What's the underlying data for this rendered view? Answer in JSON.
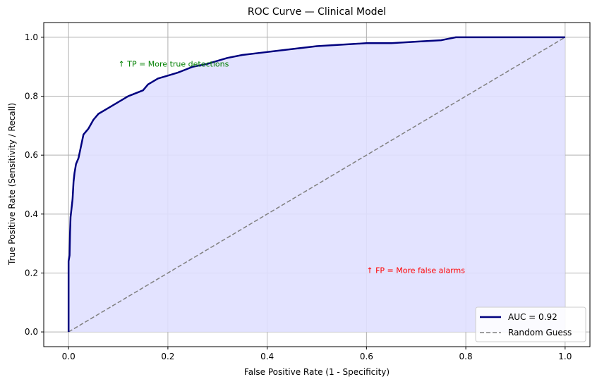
{
  "chart_data": {
    "type": "line",
    "title": "ROC Curve — Clinical Model",
    "xlabel": "False Positive Rate (1 - Specificity)",
    "ylabel": "True Positive Rate (Sensitivity / Recall)",
    "xlim": [
      -0.05,
      1.05
    ],
    "ylim": [
      -0.05,
      1.05
    ],
    "xticks": [
      "0.0",
      "0.2",
      "0.4",
      "0.6",
      "0.8",
      "1.0"
    ],
    "yticks": [
      "0.0",
      "0.2",
      "0.4",
      "0.6",
      "0.8",
      "1.0"
    ],
    "grid": true,
    "legend_position": "lower-right",
    "series": [
      {
        "name": "AUC = 0.92",
        "color": "#00007f",
        "style": "solid",
        "fill": "#e0e0ff",
        "x": [
          0,
          0,
          0.002,
          0.003,
          0.004,
          0.006,
          0.008,
          0.01,
          0.012,
          0.015,
          0.02,
          0.025,
          0.03,
          0.04,
          0.05,
          0.06,
          0.08,
          0.1,
          0.12,
          0.15,
          0.16,
          0.18,
          0.2,
          0.22,
          0.25,
          0.28,
          0.3,
          0.32,
          0.35,
          0.4,
          0.45,
          0.5,
          0.55,
          0.6,
          0.65,
          0.7,
          0.75,
          0.78,
          0.8,
          0.85,
          0.9,
          1.0
        ],
        "y": [
          0,
          0.24,
          0.26,
          0.34,
          0.39,
          0.42,
          0.45,
          0.51,
          0.54,
          0.57,
          0.59,
          0.63,
          0.67,
          0.69,
          0.72,
          0.74,
          0.76,
          0.78,
          0.8,
          0.82,
          0.84,
          0.86,
          0.87,
          0.88,
          0.9,
          0.91,
          0.92,
          0.93,
          0.94,
          0.95,
          0.96,
          0.97,
          0.975,
          0.98,
          0.98,
          0.985,
          0.99,
          1.0,
          1.0,
          1.0,
          1.0,
          1.0
        ]
      },
      {
        "name": "Random Guess",
        "color": "#808080",
        "style": "dashed",
        "x": [
          0,
          1
        ],
        "y": [
          0,
          1
        ]
      }
    ],
    "annotations": [
      {
        "text": "↑ TP = More true detections",
        "x": 0.1,
        "y": 0.9,
        "color": "#008000"
      },
      {
        "text": "↑ FP = More false alarms",
        "x": 0.6,
        "y": 0.2,
        "color": "#ff0000"
      }
    ]
  }
}
